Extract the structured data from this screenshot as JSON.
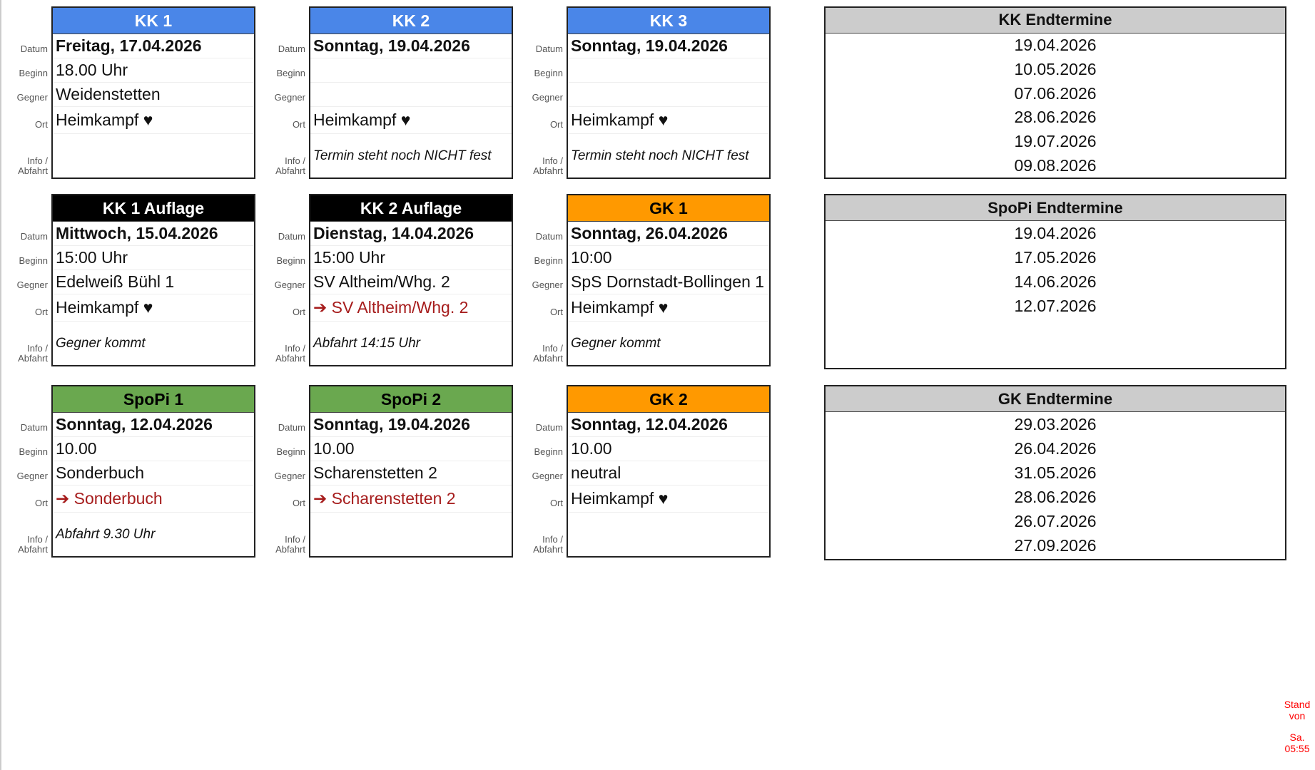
{
  "labels": {
    "datum": "Datum",
    "beginn": "Beginn",
    "gegner": "Gegner",
    "ort": "Ort",
    "info": "Info /\nAbfahrt"
  },
  "cards": [
    {
      "title": "KK 1",
      "color": "#4a86e8",
      "text_color": "#ffffff",
      "datum": "Freitag, 17.04.2026",
      "beginn": "18.00 Uhr",
      "gegner": "Weidenstetten",
      "ort": "Heimkampf ♥",
      "ort_away": false,
      "info": ""
    },
    {
      "title": "KK 2",
      "color": "#4a86e8",
      "text_color": "#ffffff",
      "datum": "Sonntag, 19.04.2026",
      "beginn": "",
      "gegner": "",
      "ort": "Heimkampf ♥",
      "ort_away": false,
      "info": "Termin steht noch NICHT fest"
    },
    {
      "title": "KK 3",
      "color": "#4a86e8",
      "text_color": "#ffffff",
      "datum": "Sonntag, 19.04.2026",
      "beginn": "",
      "gegner": "",
      "ort": "Heimkampf ♥",
      "ort_away": false,
      "info": "Termin steht noch NICHT fest"
    },
    {
      "title": "KK 1 Auflage",
      "color": "#000000",
      "text_color": "#ffffff",
      "datum": "Mittwoch, 15.04.2026",
      "beginn": "15:00 Uhr",
      "gegner": "Edelweiß Bühl 1",
      "ort": "Heimkampf ♥",
      "ort_away": false,
      "info": "Gegner kommt"
    },
    {
      "title": "KK 2 Auflage",
      "color": "#000000",
      "text_color": "#ffffff",
      "datum": "Dienstag, 14.04.2026",
      "beginn": "15:00 Uhr",
      "gegner": "SV Altheim/Whg. 2",
      "ort": "➔ SV Altheim/Whg. 2",
      "ort_away": true,
      "info": "Abfahrt 14:15 Uhr"
    },
    {
      "title": "GK 1",
      "color": "#ff9900",
      "text_color": "#000000",
      "datum": "Sonntag, 26.04.2026",
      "beginn": "10:00",
      "gegner": "SpS Dornstadt-Bollingen 1",
      "ort": "Heimkampf ♥",
      "ort_away": false,
      "info": "Gegner kommt"
    },
    {
      "title": "SpoPi 1",
      "color": "#6aa84f",
      "text_color": "#000000",
      "datum": "Sonntag, 12.04.2026",
      "beginn": "10.00",
      "gegner": "Sonderbuch",
      "ort": "➔ Sonderbuch",
      "ort_away": true,
      "info": "Abfahrt 9.30 Uhr"
    },
    {
      "title": "SpoPi 2",
      "color": "#6aa84f",
      "text_color": "#000000",
      "datum": "Sonntag, 19.04.2026",
      "beginn": "10.00",
      "gegner": "Scharenstetten 2",
      "ort": "➔ Scharenstetten 2",
      "ort_away": true,
      "info": ""
    },
    {
      "title": "GK 2",
      "color": "#ff9900",
      "text_color": "#000000",
      "datum": "Sonntag, 12.04.2026",
      "beginn": "10.00",
      "gegner": "neutral",
      "ort": "Heimkampf ♥",
      "ort_away": false,
      "info": ""
    }
  ],
  "endtermine": [
    {
      "title": "KK Endtermine",
      "dates": [
        "19.04.2026",
        "10.05.2026",
        "07.06.2026",
        "28.06.2026",
        "19.07.2026",
        "09.08.2026"
      ]
    },
    {
      "title": "SpoPi Endtermine",
      "dates": [
        "19.04.2026",
        "17.05.2026",
        "14.06.2026",
        "12.07.2026"
      ]
    },
    {
      "title": "GK Endtermine",
      "dates": [
        "29.03.2026",
        "26.04.2026",
        "31.05.2026",
        "28.06.2026",
        "26.07.2026",
        "27.09.2026"
      ]
    }
  ],
  "stand": {
    "line1": "Stand",
    "line2": "von",
    "line3": "Sa.",
    "line4": "05:55"
  }
}
